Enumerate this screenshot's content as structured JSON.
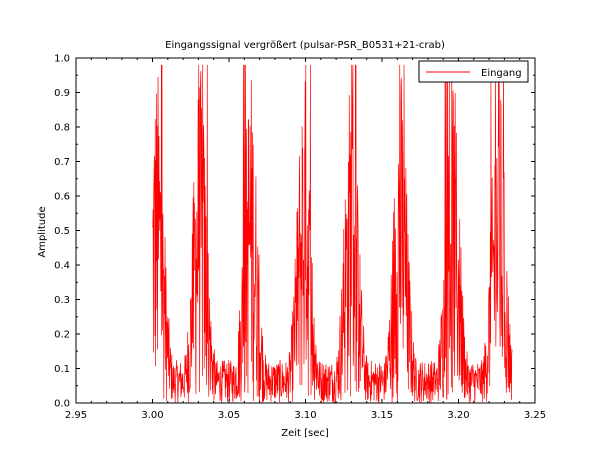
{
  "chart_data": {
    "type": "line",
    "title": "Eingangssignal vergrößert (pulsar-PSR_B0531+21-crab)",
    "xlabel": "Zeit [sec]",
    "ylabel": "Amplitude",
    "xlim": [
      2.95,
      3.25
    ],
    "ylim": [
      0.0,
      1.0
    ],
    "xticks": [
      "2.95",
      "3.00",
      "3.05",
      "3.10",
      "3.15",
      "3.20",
      "3.25"
    ],
    "yticks": [
      "0.0",
      "0.1",
      "0.2",
      "0.3",
      "0.4",
      "0.5",
      "0.6",
      "0.7",
      "0.8",
      "0.9",
      "1.0"
    ],
    "grid": false,
    "legend_position": "top-right",
    "series": [
      {
        "name": "Eingang",
        "color": "#ff0000",
        "x_start": 3.0,
        "x_end": 3.235,
        "sample_step": 0.0002,
        "note_values": "dense noisy pulsar signal, amplitude 0.0–0.98, peaks near 0.98, envelope roughly periodic",
        "burst_centers": [
          3.003,
          3.031,
          3.064,
          3.099,
          3.13,
          3.162,
          3.196,
          3.226
        ],
        "burst_peak": 0.98
      }
    ]
  }
}
